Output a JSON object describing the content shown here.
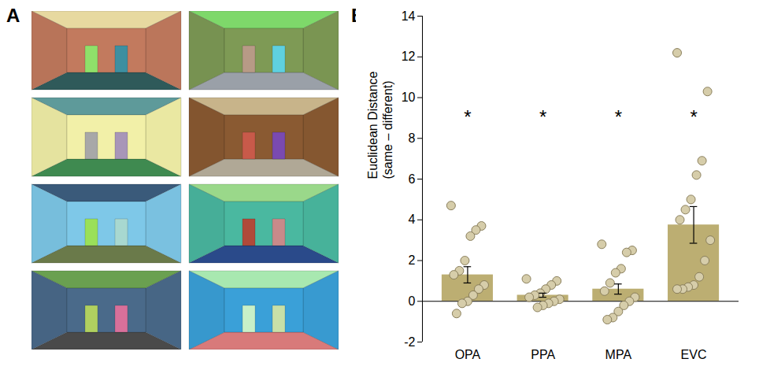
{
  "panel_labels": [
    "A",
    "B"
  ],
  "chart_data": {
    "type": "bar",
    "y_label": "Euclidean Distance (same – different)",
    "categories": [
      "OPA",
      "PPA",
      "MPA",
      "EVC"
    ],
    "values": [
      1.3,
      0.3,
      0.6,
      3.75
    ],
    "error": [
      0.4,
      0.1,
      0.25,
      0.9
    ],
    "points": [
      [
        4.7,
        3.7,
        3.5,
        3.2,
        2.0,
        1.5,
        1.3,
        0.8,
        0.6,
        0.3,
        0.0,
        -0.1,
        -0.6
      ],
      [
        1.1,
        1.0,
        0.8,
        0.6,
        0.4,
        0.3,
        0.2,
        0.1,
        0.0,
        -0.1,
        -0.2,
        -0.3
      ],
      [
        2.8,
        2.5,
        2.4,
        1.6,
        1.4,
        0.9,
        0.5,
        0.2,
        0.0,
        -0.2,
        -0.5,
        -0.8,
        -0.9
      ],
      [
        12.2,
        10.3,
        6.9,
        6.2,
        5.0,
        4.5,
        4.0,
        3.0,
        2.0,
        1.2,
        0.8,
        0.7,
        0.6,
        0.6
      ]
    ],
    "annotations": [
      {
        "text": "*",
        "category": "OPA",
        "y": 9.2
      },
      {
        "text": "*",
        "category": "PPA",
        "y": 9.2
      },
      {
        "text": "*",
        "category": "MPA",
        "y": 9.2
      },
      {
        "text": "*",
        "category": "EVC",
        "y": 9.2
      }
    ],
    "color": "#bcae72",
    "ylim": [
      -2,
      14
    ],
    "yticks": [
      -2,
      0,
      2,
      4,
      6,
      8,
      10,
      12,
      14
    ]
  }
}
